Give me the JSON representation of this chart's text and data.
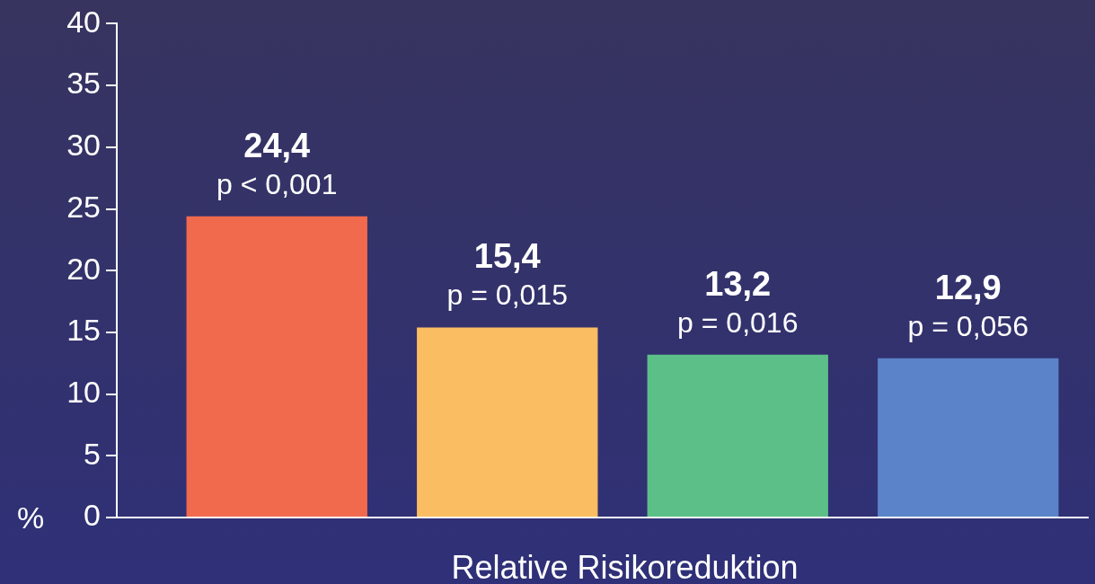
{
  "chart_data": {
    "type": "bar",
    "xlabel": "Relative Risikoreduktion",
    "ylabel": "%",
    "categories": [
      null,
      null,
      null,
      null
    ],
    "values": [
      24.4,
      15.4,
      13.2,
      12.9
    ],
    "colors": [
      "#f26a4e",
      "#fbbd62",
      "#5cbf88",
      "#5b83c9"
    ],
    "value_labels": [
      "24,4",
      "15,4",
      "13,2",
      "12,9"
    ],
    "annotations": [
      "p < 0,001",
      "p = 0,015",
      "p = 0,016",
      "p = 0,056"
    ],
    "ylim": [
      0,
      40
    ],
    "yticks": [
      0,
      5,
      10,
      15,
      20,
      25,
      30,
      35,
      40
    ],
    "legend": false
  }
}
